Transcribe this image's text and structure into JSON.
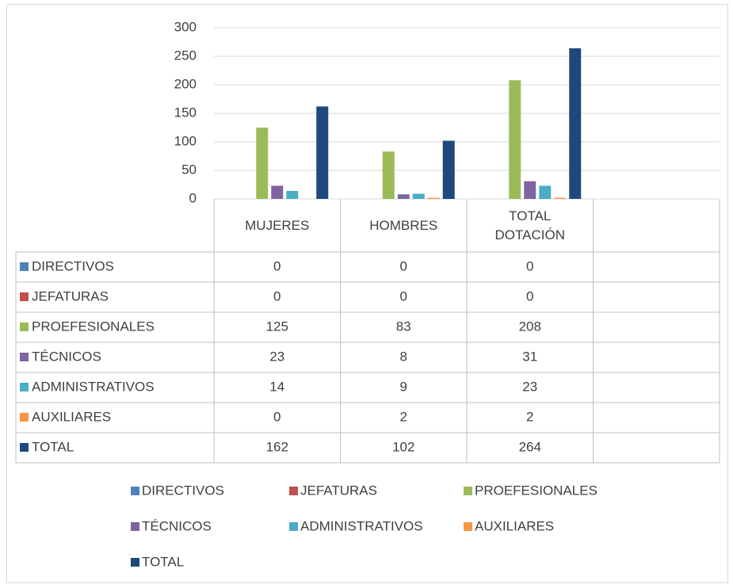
{
  "chart_data": {
    "type": "bar",
    "categories": [
      "MUJERES",
      "HOMBRES",
      "TOTAL DOTACIÓN",
      null
    ],
    "series": [
      {
        "name": "DIRECTIVOS",
        "color": "#4f81bd",
        "values": [
          0,
          0,
          0,
          null
        ]
      },
      {
        "name": "JEFATURAS",
        "color": "#c0504d",
        "values": [
          0,
          0,
          0,
          null
        ]
      },
      {
        "name": "PROEFESIONALES",
        "color": "#9bbb59",
        "values": [
          125,
          83,
          208,
          null
        ]
      },
      {
        "name": "TÉCNICOS",
        "color": "#8064a2",
        "values": [
          23,
          8,
          31,
          null
        ]
      },
      {
        "name": "ADMINISTRATIVOS",
        "color": "#4bacc6",
        "values": [
          14,
          9,
          23,
          null
        ]
      },
      {
        "name": "AUXILIARES",
        "color": "#f79646",
        "values": [
          0,
          2,
          2,
          null
        ]
      },
      {
        "name": "TOTAL",
        "color": "#1f497d",
        "values": [
          162,
          102,
          264,
          null
        ]
      }
    ],
    "ylim": [
      0,
      300
    ],
    "yticks": [
      0,
      50,
      100,
      150,
      200,
      250,
      300
    ],
    "grid": true,
    "legend": "bottom",
    "data_table": true
  }
}
